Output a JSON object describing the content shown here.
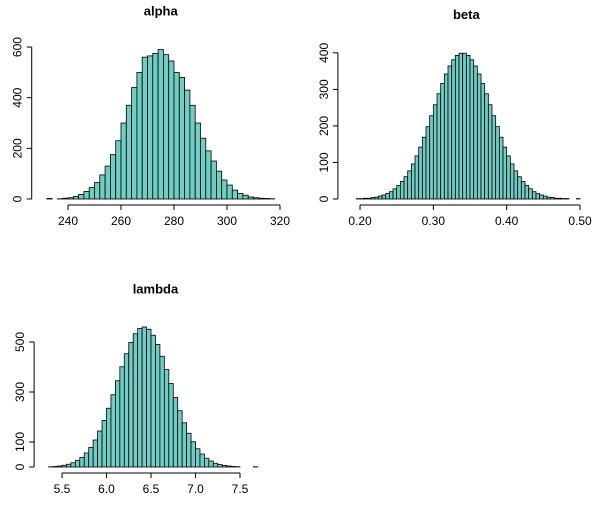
{
  "chart_data": [
    {
      "type": "histogram",
      "title": "alpha",
      "color": "#70cdc4",
      "bins": [
        232,
        234,
        236,
        238,
        240,
        242,
        244,
        246,
        248,
        250,
        252,
        254,
        256,
        258,
        260,
        262,
        264,
        266,
        268,
        270,
        272,
        274,
        276,
        278,
        280,
        282,
        284,
        286,
        288,
        290,
        292,
        294,
        296,
        298,
        300,
        302,
        304,
        306,
        308,
        310,
        312,
        314,
        316,
        318
      ],
      "counts": [
        2,
        0,
        1,
        3,
        5,
        10,
        18,
        30,
        45,
        65,
        95,
        130,
        175,
        230,
        300,
        370,
        440,
        500,
        560,
        565,
        575,
        590,
        570,
        545,
        500,
        480,
        430,
        370,
        300,
        240,
        190,
        150,
        110,
        75,
        55,
        35,
        22,
        15,
        8,
        5,
        3,
        2,
        1
      ],
      "xlim": [
        228.56,
        321.44
      ],
      "xticks": [
        240,
        260,
        280,
        300,
        320
      ],
      "ylim": [
        0,
        614
      ],
      "yticks": [
        0,
        200,
        400,
        600
      ]
    },
    {
      "type": "histogram",
      "title": "beta",
      "color": "#70cdc4",
      "bins": [
        0.19,
        0.195,
        0.2,
        0.205,
        0.21,
        0.215,
        0.22,
        0.225,
        0.23,
        0.235,
        0.24,
        0.245,
        0.25,
        0.255,
        0.26,
        0.265,
        0.27,
        0.275,
        0.28,
        0.285,
        0.29,
        0.295,
        0.3,
        0.305,
        0.31,
        0.315,
        0.32,
        0.325,
        0.33,
        0.335,
        0.34,
        0.345,
        0.35,
        0.355,
        0.36,
        0.365,
        0.37,
        0.375,
        0.38,
        0.385,
        0.39,
        0.395,
        0.4,
        0.405,
        0.41,
        0.415,
        0.42,
        0.425,
        0.43,
        0.435,
        0.44,
        0.445,
        0.45,
        0.455,
        0.46,
        0.465,
        0.47,
        0.475,
        0.48,
        0.485,
        0.49,
        0.495,
        0.5
      ],
      "counts": [
        0,
        1,
        1,
        2,
        2,
        4,
        5,
        8,
        11,
        15,
        20,
        28,
        37,
        48,
        61,
        77,
        96,
        118,
        142,
        169,
        198,
        228,
        258,
        288,
        316,
        342,
        364,
        381,
        393,
        399,
        399,
        393,
        381,
        364,
        342,
        316,
        288,
        258,
        228,
        198,
        169,
        142,
        118,
        96,
        77,
        61,
        48,
        37,
        28,
        20,
        15,
        11,
        8,
        5,
        4,
        2,
        2,
        1,
        1,
        0,
        0,
        1
      ],
      "xlim": [
        0.178,
        0.512
      ],
      "xticks": [
        {
          "value": 0.2,
          "label": "0.20"
        },
        {
          "value": 0.3,
          "label": "0.30"
        },
        {
          "value": 0.4,
          "label": "0.40"
        },
        {
          "value": 0.5,
          "label": "0.50"
        }
      ],
      "ylim": [
        0,
        416
      ],
      "yticks": [
        0,
        100,
        200,
        300,
        400
      ]
    },
    {
      "type": "histogram",
      "title": "lambda",
      "color": "#70cdc4",
      "bins": [
        5.35,
        5.4,
        5.45,
        5.5,
        5.55,
        5.6,
        5.65,
        5.7,
        5.75,
        5.8,
        5.85,
        5.9,
        5.95,
        6.0,
        6.05,
        6.1,
        6.15,
        6.2,
        6.25,
        6.3,
        6.35,
        6.4,
        6.45,
        6.5,
        6.55,
        6.6,
        6.65,
        6.7,
        6.75,
        6.8,
        6.85,
        6.9,
        6.95,
        7.0,
        7.05,
        7.1,
        7.15,
        7.2,
        7.25,
        7.3,
        7.35,
        7.4,
        7.45,
        7.5,
        7.55,
        7.6,
        7.65,
        7.7,
        7.75
      ],
      "counts": [
        1,
        2,
        4,
        7,
        11,
        17,
        26,
        38,
        56,
        78,
        108,
        144,
        186,
        235,
        289,
        345,
        401,
        453,
        498,
        533,
        554,
        560,
        551,
        527,
        490,
        443,
        390,
        334,
        278,
        225,
        177,
        135,
        101,
        73,
        52,
        35,
        24,
        15,
        10,
        6,
        4,
        2,
        1,
        0,
        0,
        0,
        1,
        0
      ],
      "xlim": [
        5.254,
        7.846
      ],
      "xticks": [
        5.5,
        {
          "value": 6.0,
          "label": "6.0"
        },
        6.5,
        {
          "value": 7.0,
          "label": "7.0"
        },
        7.5
      ],
      "ylim": [
        0,
        582
      ],
      "yticks": [
        0,
        100,
        300,
        500
      ]
    }
  ]
}
